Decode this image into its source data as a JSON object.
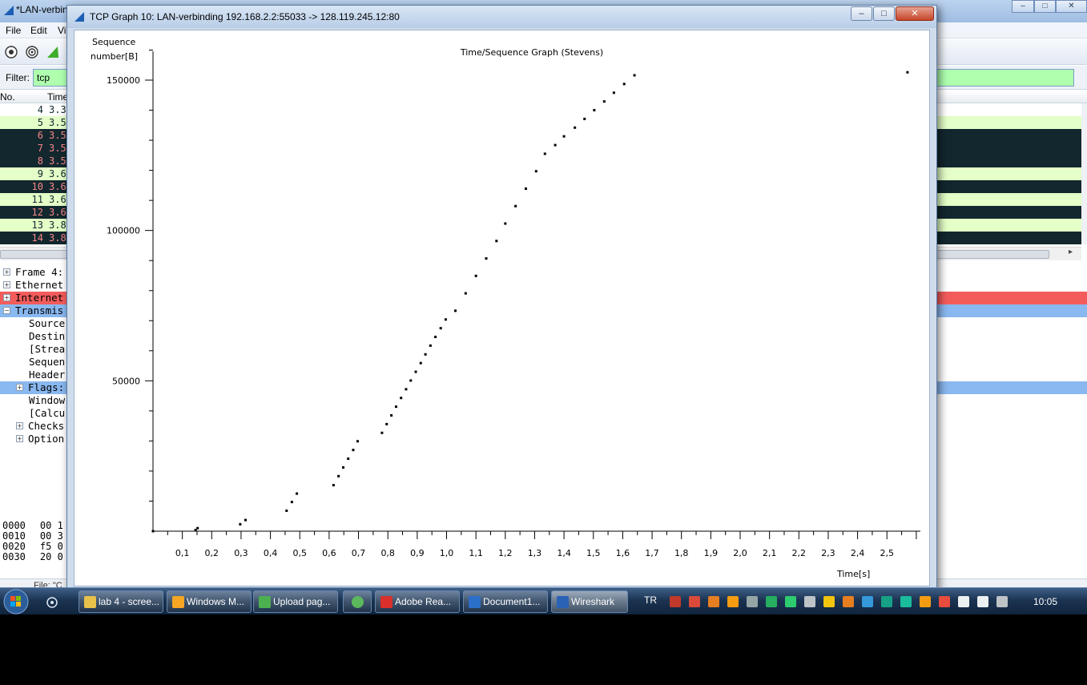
{
  "background_window": {
    "title": "*LAN-verbinding",
    "menu": [
      "File",
      "Edit",
      "Vi"
    ],
    "filter_label": "Filter:",
    "filter_value": "tcp",
    "columns": [
      "No.",
      "Time"
    ],
    "packets": [
      {
        "no": "4",
        "time": "3.3",
        "style": "white"
      },
      {
        "no": "5",
        "time": "3.5",
        "style": "light"
      },
      {
        "no": "6",
        "time": "3.5",
        "style": "dark"
      },
      {
        "no": "7",
        "time": "3.5",
        "style": "dark"
      },
      {
        "no": "8",
        "time": "3.5",
        "style": "dark"
      },
      {
        "no": "9",
        "time": "3.6",
        "style": "light"
      },
      {
        "no": "10",
        "time": "3.6",
        "style": "dark"
      },
      {
        "no": "11",
        "time": "3.6",
        "style": "light"
      },
      {
        "no": "12",
        "time": "3.6",
        "style": "dark"
      },
      {
        "no": "13",
        "time": "3.8",
        "style": "light"
      },
      {
        "no": "14",
        "time": "3.8",
        "style": "dark"
      }
    ],
    "tree": [
      {
        "label": "Frame 4:",
        "indent": 0,
        "toggle": "+",
        "highlight": ""
      },
      {
        "label": "Ethernet",
        "indent": 0,
        "toggle": "+",
        "highlight": ""
      },
      {
        "label": "Internet",
        "indent": 0,
        "toggle": "+",
        "highlight": "red"
      },
      {
        "label": "Transmis",
        "indent": 0,
        "toggle": "-",
        "highlight": "blue"
      },
      {
        "label": "Source",
        "indent": 2,
        "toggle": "",
        "highlight": ""
      },
      {
        "label": "Destin",
        "indent": 2,
        "toggle": "",
        "highlight": ""
      },
      {
        "label": "[Strea",
        "indent": 2,
        "toggle": "",
        "highlight": ""
      },
      {
        "label": "Sequen",
        "indent": 2,
        "toggle": "",
        "highlight": ""
      },
      {
        "label": "Header",
        "indent": 2,
        "toggle": "",
        "highlight": ""
      },
      {
        "label": "Flags:",
        "indent": 1,
        "toggle": "+",
        "highlight": "blue"
      },
      {
        "label": "Window",
        "indent": 2,
        "toggle": "",
        "highlight": ""
      },
      {
        "label": "[Calcu",
        "indent": 2,
        "toggle": "",
        "highlight": ""
      },
      {
        "label": "Checks",
        "indent": 1,
        "toggle": "+",
        "highlight": ""
      },
      {
        "label": "Option",
        "indent": 1,
        "toggle": "+",
        "highlight": ""
      }
    ],
    "hex": [
      {
        "offset": "0000",
        "bytes": "00 1"
      },
      {
        "offset": "0010",
        "bytes": "00 3"
      },
      {
        "offset": "0020",
        "bytes": "f5 0"
      },
      {
        "offset": "0030",
        "bytes": "20 0"
      }
    ],
    "status_text": "File: \"C"
  },
  "graph_window": {
    "title": "TCP Graph 10: LAN-verbinding 192.168.2.2:55033 -> 128.119.245.12:80",
    "buttons": {
      "minimize": "–",
      "maximize": "□",
      "close": "✕"
    }
  },
  "chart_data": {
    "type": "scatter",
    "title": "Time/Sequence Graph (Stevens)",
    "ylabel": "Sequence number[B]",
    "xlabel": "Time[s]",
    "xlim": [
      0.0,
      2.6
    ],
    "ylim": [
      0,
      162000
    ],
    "yticks": [
      50000,
      100000,
      150000
    ],
    "ytick_labels": [
      "50000",
      "100000",
      "150000"
    ],
    "xticks": [
      0.1,
      0.2,
      0.3,
      0.4,
      0.5,
      0.6,
      0.7,
      0.8,
      0.9,
      1.0,
      1.1,
      1.2,
      1.3,
      1.4,
      1.5,
      1.6,
      1.7,
      1.8,
      1.9,
      2.0,
      2.1,
      2.2,
      2.3,
      2.4,
      2.5
    ],
    "xtick_labels": [
      "0,1",
      "0,2",
      "0,3",
      "0,4",
      "0,5",
      "0,6",
      "0,7",
      "0,8",
      "0,9",
      "1,0",
      "1,1",
      "1,2",
      "1,3",
      "1,4",
      "1,5",
      "1,6",
      "1,7",
      "1,8",
      "1,9",
      "2,0",
      "2,1",
      "2,2",
      "2,3",
      "2,4",
      "2,5"
    ],
    "grid": false,
    "points": [
      [
        0.0,
        0
      ],
      [
        0.145,
        400
      ],
      [
        0.152,
        1000
      ],
      [
        0.297,
        2300
      ],
      [
        0.315,
        3700
      ],
      [
        0.455,
        6800
      ],
      [
        0.473,
        9700
      ],
      [
        0.49,
        12500
      ],
      [
        0.615,
        15300
      ],
      [
        0.632,
        18300
      ],
      [
        0.648,
        21200
      ],
      [
        0.665,
        24100
      ],
      [
        0.682,
        27000
      ],
      [
        0.697,
        29900
      ],
      [
        0.78,
        32700
      ],
      [
        0.796,
        35600
      ],
      [
        0.812,
        38500
      ],
      [
        0.828,
        41400
      ],
      [
        0.845,
        44300
      ],
      [
        0.862,
        47200
      ],
      [
        0.878,
        50100
      ],
      [
        0.895,
        53000
      ],
      [
        0.912,
        55900
      ],
      [
        0.928,
        58800
      ],
      [
        0.945,
        61700
      ],
      [
        0.962,
        64600
      ],
      [
        0.98,
        67500
      ],
      [
        0.997,
        70400
      ],
      [
        1.03,
        73300
      ],
      [
        1.065,
        79100
      ],
      [
        1.1,
        84900
      ],
      [
        1.135,
        90700
      ],
      [
        1.17,
        96500
      ],
      [
        1.2,
        102300
      ],
      [
        1.235,
        108100
      ],
      [
        1.27,
        113900
      ],
      [
        1.305,
        119700
      ],
      [
        1.335,
        125500
      ],
      [
        1.37,
        128400
      ],
      [
        1.4,
        131300
      ],
      [
        1.437,
        134200
      ],
      [
        1.47,
        137100
      ],
      [
        1.503,
        140000
      ],
      [
        1.537,
        142900
      ],
      [
        1.57,
        145800
      ],
      [
        1.605,
        148700
      ],
      [
        1.64,
        151600
      ],
      [
        2.57,
        152600
      ]
    ]
  },
  "taskbar": {
    "tasks": [
      {
        "label": "lab 4 - scree...",
        "icon_color": "#e8c14a",
        "active": false
      },
      {
        "label": "Windows M...",
        "icon_color": "#f5a623",
        "active": false
      },
      {
        "label": "Upload pag...",
        "icon_color": "#4caf50",
        "active": false
      },
      {
        "label": "",
        "icon_color": "#5cb85c",
        "active": false
      },
      {
        "label": "Adobe Rea...",
        "icon_color": "#d9302c",
        "active": false
      },
      {
        "label": "Document1...",
        "icon_color": "#2b6fc8",
        "active": false
      },
      {
        "label": "Wireshark",
        "icon_color": "#2a62b5",
        "active": true
      }
    ],
    "language": "TR",
    "clock": "10:05"
  }
}
